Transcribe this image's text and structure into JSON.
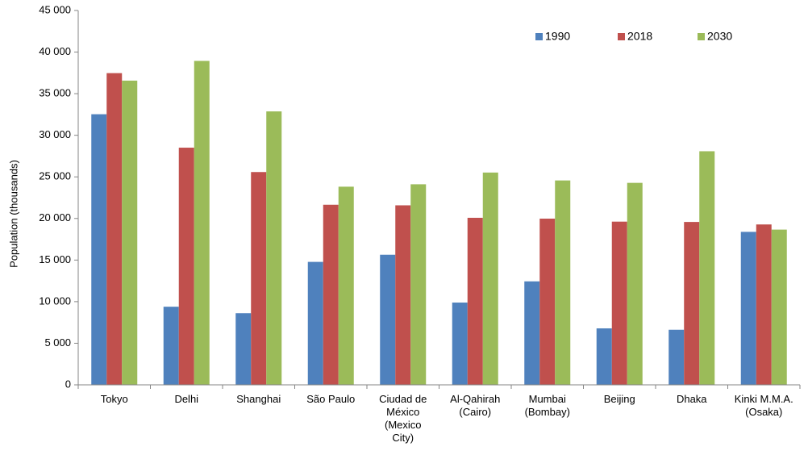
{
  "chart_data": {
    "type": "bar",
    "title": "",
    "xlabel": "",
    "ylabel": "Population (thousands)",
    "ylim": [
      0,
      45000
    ],
    "yticks": [
      0,
      5000,
      10000,
      15000,
      20000,
      25000,
      30000,
      35000,
      40000,
      45000
    ],
    "ytick_labels": [
      "0",
      "5 000",
      "10 000",
      "15 000",
      "20 000",
      "25 000",
      "30 000",
      "35 000",
      "40 000",
      "45 000"
    ],
    "grid": false,
    "legend_position": "top-right",
    "categories": [
      [
        "Tokyo"
      ],
      [
        "Delhi"
      ],
      [
        "Shanghai"
      ],
      [
        "São Paulo"
      ],
      [
        "Ciudad de",
        "México",
        "(Mexico",
        "City)"
      ],
      [
        "Al-Qahirah",
        "(Cairo)"
      ],
      [
        "Mumbai",
        "(Bombay)"
      ],
      [
        "Beijing"
      ],
      [
        "Dhaka"
      ],
      [
        "Kinki M.M.A.",
        "(Osaka)"
      ]
    ],
    "series": [
      {
        "name": "1990",
        "color": "#4F81BD",
        "values": [
          32530,
          9390,
          8610,
          14780,
          15640,
          9890,
          12440,
          6790,
          6620,
          18390
        ]
      },
      {
        "name": "2018",
        "color": "#C0504D",
        "values": [
          37470,
          28510,
          25580,
          21650,
          21580,
          20080,
          19980,
          19620,
          19580,
          19280
        ]
      },
      {
        "name": "2030",
        "color": "#9BBB59",
        "values": [
          36570,
          38940,
          32870,
          23820,
          24110,
          25520,
          24570,
          24280,
          28080,
          18660
        ]
      }
    ]
  }
}
